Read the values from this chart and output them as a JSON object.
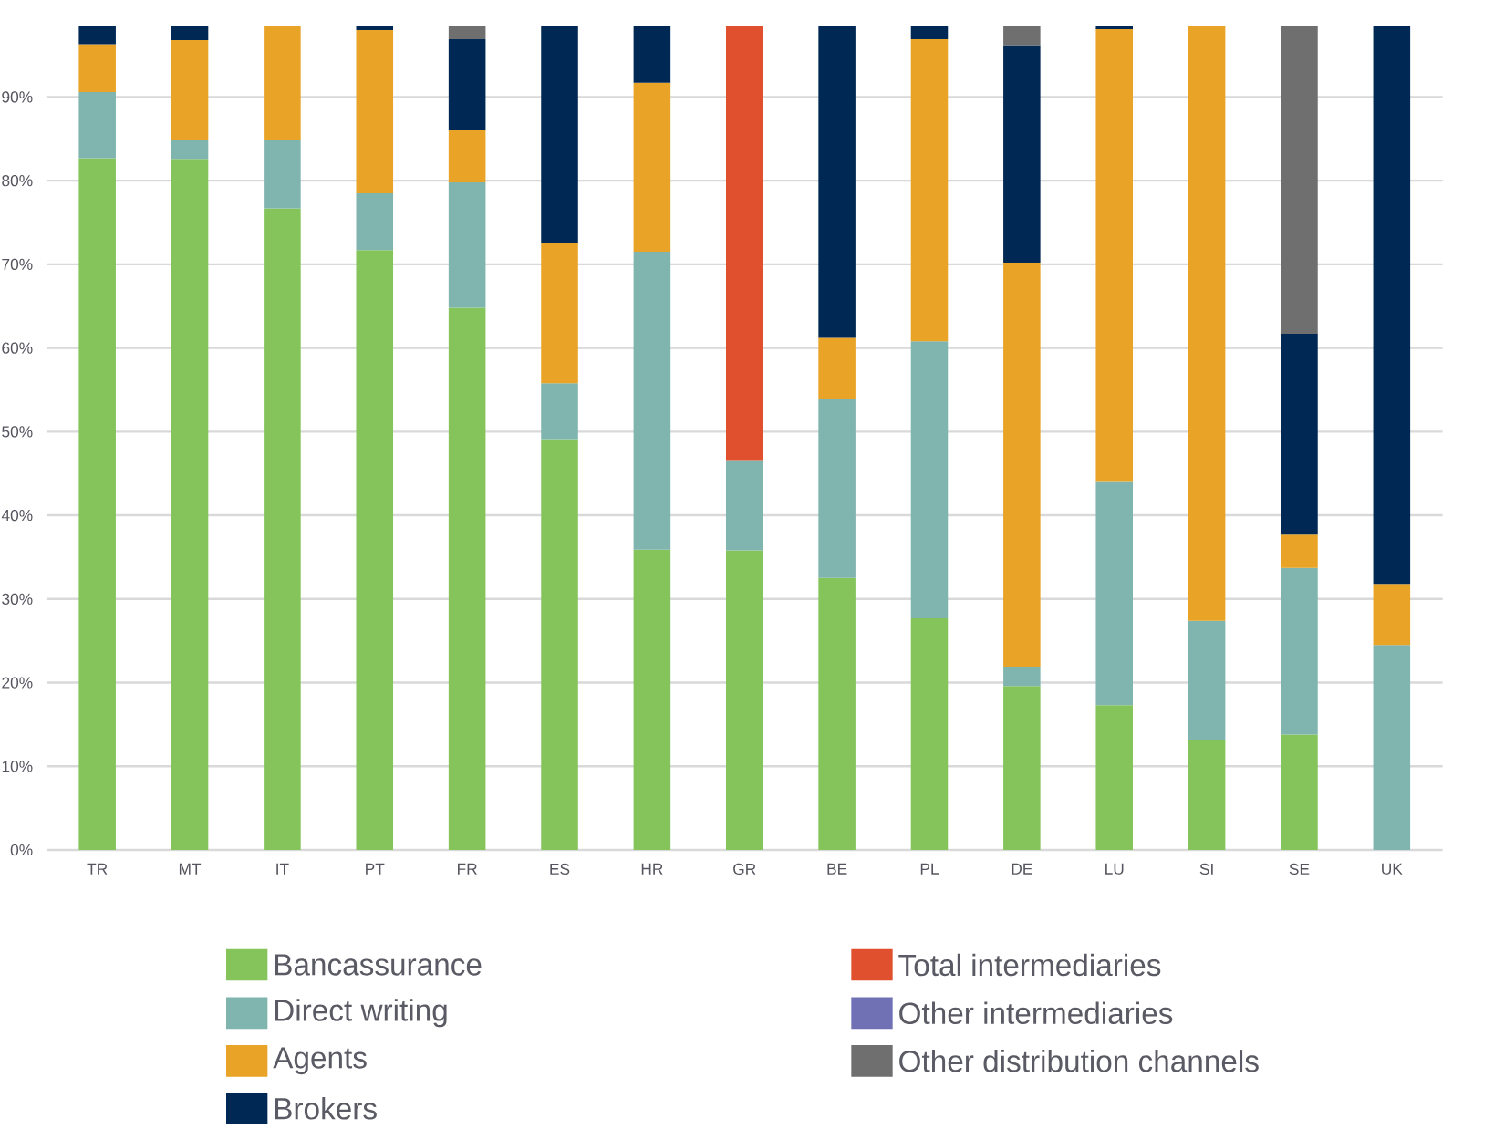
{
  "chart_data": {
    "type": "bar",
    "stacked": true,
    "categories": [
      "TR",
      "MT",
      "IT",
      "PT",
      "FR",
      "ES",
      "HR",
      "GR",
      "BE",
      "PL",
      "DE",
      "LU",
      "SI",
      "SE",
      "UK"
    ],
    "ylim": [
      0,
      98.5
    ],
    "yticks": [
      {
        "value": 0,
        "label": "0%"
      },
      {
        "value": 10,
        "label": "10%"
      },
      {
        "value": 20,
        "label": "20%"
      },
      {
        "value": 30,
        "label": "30%"
      },
      {
        "value": 40,
        "label": "40%"
      },
      {
        "value": 50,
        "label": "50%"
      },
      {
        "value": 60,
        "label": "60%"
      },
      {
        "value": 70,
        "label": "70%"
      },
      {
        "value": 80,
        "label": "80%"
      },
      {
        "value": 90,
        "label": "90%"
      }
    ],
    "grid": "y",
    "legend": "bottom",
    "series": [
      {
        "name": "Bancassurance",
        "color": "#84c45b",
        "values": [
          82.7,
          82.6,
          76.7,
          71.7,
          64.8,
          49.1,
          35.9,
          35.8,
          32.5,
          27.7,
          19.6,
          17.3,
          13.2,
          13.8,
          null
        ]
      },
      {
        "name": "Direct writing",
        "color": "#7fb5ae",
        "values": [
          7.9,
          2.3,
          8.2,
          6.8,
          15.0,
          6.7,
          35.6,
          10.8,
          21.4,
          33.1,
          2.3,
          26.8,
          14.2,
          19.9,
          24.5
        ]
      },
      {
        "name": "Agents",
        "color": "#e9a326",
        "values": [
          5.7,
          11.9,
          13.6,
          19.5,
          6.2,
          16.7,
          20.2,
          null,
          7.3,
          36.1,
          48.3,
          54.0,
          71.1,
          4.0,
          7.3
        ]
      },
      {
        "name": "Brokers",
        "color": "#002855",
        "values": [
          2.2,
          1.7,
          null,
          0.5,
          10.9,
          26.0,
          6.8,
          null,
          37.3,
          1.6,
          26.0,
          0.4,
          null,
          24.0,
          66.7
        ]
      },
      {
        "name": "Total intermediaries",
        "color": "#e0502e",
        "values": [
          null,
          null,
          null,
          null,
          null,
          null,
          null,
          51.9,
          null,
          null,
          null,
          null,
          null,
          null,
          null
        ]
      },
      {
        "name": "Other intermediaries",
        "color": "#7070b5",
        "values": [
          null,
          null,
          null,
          null,
          null,
          null,
          null,
          null,
          null,
          null,
          null,
          null,
          null,
          null,
          null
        ]
      },
      {
        "name": "Other distribution channels",
        "color": "#6f6f6f",
        "values": [
          null,
          null,
          null,
          null,
          1.6,
          null,
          null,
          null,
          null,
          null,
          2.3,
          null,
          null,
          36.8,
          null
        ]
      }
    ]
  }
}
